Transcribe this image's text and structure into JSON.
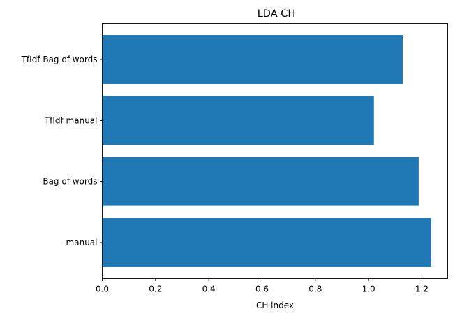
{
  "chart_data": {
    "type": "bar",
    "orientation": "horizontal",
    "title": "LDA CH",
    "xlabel": "CH index",
    "ylabel": "",
    "categories": [
      "manual",
      "Bag of words",
      "TfIdf manual",
      "TfIdf Bag of words"
    ],
    "values": [
      1.235,
      1.188,
      1.02,
      1.128
    ],
    "xlim": [
      0,
      1.297
    ],
    "xticks": [
      "0.0",
      "0.2",
      "0.4",
      "0.6",
      "0.8",
      "1.0",
      "1.2"
    ],
    "grid": false,
    "bar_color": "#1f77b4"
  }
}
